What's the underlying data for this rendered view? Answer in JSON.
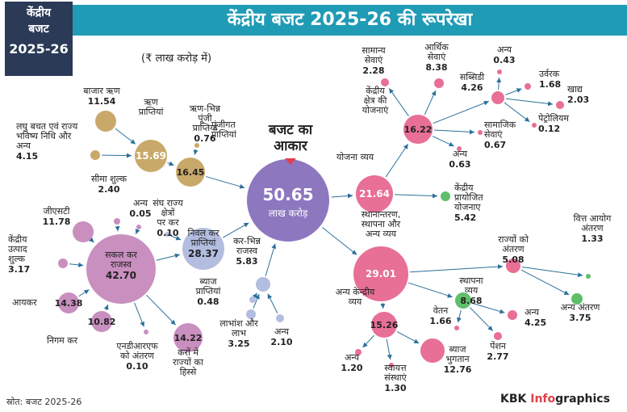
{
  "badge": {
    "line1": "केंद्रीय",
    "line2": "बजट",
    "line3": "2025-26"
  },
  "title": "केंद्रीय बजट 2025-26 की रूपरेखा",
  "unit_note": "(₹ लाख करोड़ में)",
  "budget_size_label": [
    "बजट का",
    "आकार"
  ],
  "footer": {
    "source": "स्रोत: बजट 2025-26",
    "brand_prefix": "KBK ",
    "brand_accent": "Info",
    "brand_suffix": "graphics"
  },
  "colors": {
    "title_bg": "#1f9bb6",
    "badge_bg": "#2a3a57",
    "center": "#8d77bf",
    "tan": "#c9a96a",
    "mauve": "#c98fbf",
    "lav": "#b3bde0",
    "pink": "#e86f95",
    "green": "#5fbf6b"
  },
  "nodes": [
    {
      "id": "center",
      "value": "50.65",
      "label": "लाख करोड़"
    },
    {
      "id": "market_loans",
      "label": "बाजार ऋण",
      "value": "11.54"
    },
    {
      "id": "small_savings",
      "label": "लघु बचत एवं राज्य भविष्य निधि और अन्य",
      "value": "4.15"
    },
    {
      "id": "debt_receipts",
      "label": "ऋण प्राप्तियां",
      "value": "15.69"
    },
    {
      "id": "non_debt",
      "label": "ऋण-भिन्न पूंजी प्राप्तियां",
      "value": "0.76"
    },
    {
      "id": "capital_receipts",
      "label": "पूंजीगत प्राप्तियां",
      "value": "16.45"
    },
    {
      "id": "customs",
      "label": "सीमा शुल्क",
      "value": "2.40"
    },
    {
      "id": "other_tax",
      "label": "अन्य",
      "value": "0.05"
    },
    {
      "id": "ut_tax",
      "label": "संघ राज्य क्षेत्रों पर कर",
      "value": "0.10"
    },
    {
      "id": "gst",
      "label": "जीएसटी",
      "value": "11.78"
    },
    {
      "id": "excise",
      "label": "केंद्रीय उत्पाद शुल्क",
      "value": "3.17"
    },
    {
      "id": "gross_tax",
      "label": "सकल कर राजस्व",
      "value": "42.70"
    },
    {
      "id": "net_tax",
      "label": "निवल कर प्राप्तियां",
      "value": "28.37"
    },
    {
      "id": "income_tax",
      "label": "आयकर",
      "value": "14.38"
    },
    {
      "id": "corp_tax",
      "label": "निगम कर",
      "value": "10.82"
    },
    {
      "id": "ndrf",
      "label": "एनडीआरएफ को अंतरण",
      "value": "0.10"
    },
    {
      "id": "states_share",
      "label": "करों में राज्यों का हिस्से",
      "value": "14.22"
    },
    {
      "id": "non_tax",
      "label": "कर-भिन्न राजस्व",
      "value": "5.83"
    },
    {
      "id": "interest_rec",
      "label": "ब्याज प्राप्तियां",
      "value": "0.48"
    },
    {
      "id": "dividends",
      "label": "लाभांश और लाभ",
      "value": "3.25"
    },
    {
      "id": "other_nontax",
      "label": "अन्य",
      "value": "2.10"
    },
    {
      "id": "scheme_exp",
      "label": "योजना व्यय",
      "value": "21.64"
    },
    {
      "id": "central_schemes",
      "label": "केंद्रीय क्षेत्र की योजनाएं",
      "value": "16.22"
    },
    {
      "id": "general_services",
      "label": "सामान्य सेवाएं",
      "value": "2.28"
    },
    {
      "id": "economic_services",
      "label": "आर्थिक सेवाएं",
      "value": "8.38"
    },
    {
      "id": "subsidy",
      "label": "सब्सिडी",
      "value": "4.26"
    },
    {
      "id": "other_sub",
      "label": "अन्य",
      "value": "0.43"
    },
    {
      "id": "fertilizer",
      "label": "उर्वरक",
      "value": "1.68"
    },
    {
      "id": "food",
      "label": "खाद्य",
      "value": "2.03"
    },
    {
      "id": "petroleum",
      "label": "पेट्रोलियम",
      "value": "0.12"
    },
    {
      "id": "social_services",
      "label": "सामाजिक सेवाएं",
      "value": "0.67"
    },
    {
      "id": "other_cs",
      "label": "अन्य",
      "value": "0.63"
    },
    {
      "id": "css",
      "label": "केंद्रीय प्रायोजित योजनाए",
      "value": "5.42"
    },
    {
      "id": "establishment_exp",
      "label": "स्थानान्तरण, स्थापना और अन्य व्यय",
      "value": "29.01"
    },
    {
      "id": "transfers_states",
      "label": "राज्यों को अंतरण",
      "value": "5.08"
    },
    {
      "id": "fc_transfer",
      "label": "वित्त आयोग अंतरण",
      "value": "1.33"
    },
    {
      "id": "other_transfer",
      "label": "अन्य अंतरण",
      "value": "3.75"
    },
    {
      "id": "establishment",
      "label": "स्थापना व्यय",
      "value": "8.68"
    },
    {
      "id": "salary",
      "label": "वेतन",
      "value": "1.66"
    },
    {
      "id": "pension",
      "label": "पेंशन",
      "value": "2.77"
    },
    {
      "id": "other_est",
      "label": "अन्य",
      "value": "4.25"
    },
    {
      "id": "other_central",
      "label": "अन्य केन्द्रीय व्यय",
      "value": "15.26"
    },
    {
      "id": "other_oc",
      "label": "अन्य",
      "value": "1.20"
    },
    {
      "id": "autonomous",
      "label": "स्वायत्त संस्थाएं",
      "value": "1.30"
    },
    {
      "id": "interest_pay",
      "label": "ब्याज भुगतान",
      "value": "12.76"
    }
  ]
}
